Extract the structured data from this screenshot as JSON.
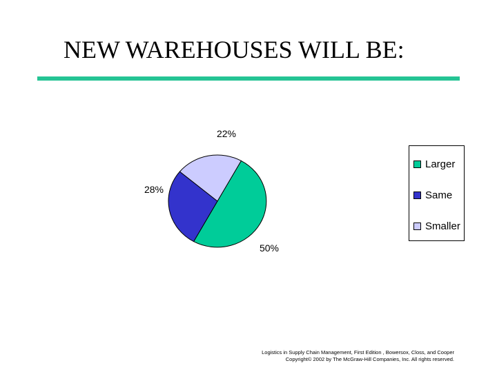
{
  "slide": {
    "title": "NEW WAREHOUSES WILL BE:",
    "footer_line1": "Logistics in Supply Chain Management, First Edition , Bowersox, Closs, and Cooper",
    "footer_line2": "Copyright© 2002 by The McGraw-Hill Companies, Inc. All rights reserved."
  },
  "colors": {
    "accent_rule": "#25c494"
  },
  "chart_data": {
    "type": "pie",
    "title": "",
    "legend_position": "right",
    "slices": [
      {
        "label": "Larger",
        "value": 50,
        "value_label": "50%",
        "color": "#00cc99"
      },
      {
        "label": "Same",
        "value": 28,
        "value_label": "28%",
        "color": "#3333cc"
      },
      {
        "label": "Smaller",
        "value": 22,
        "value_label": "22%",
        "color": "#ccccff"
      }
    ]
  }
}
